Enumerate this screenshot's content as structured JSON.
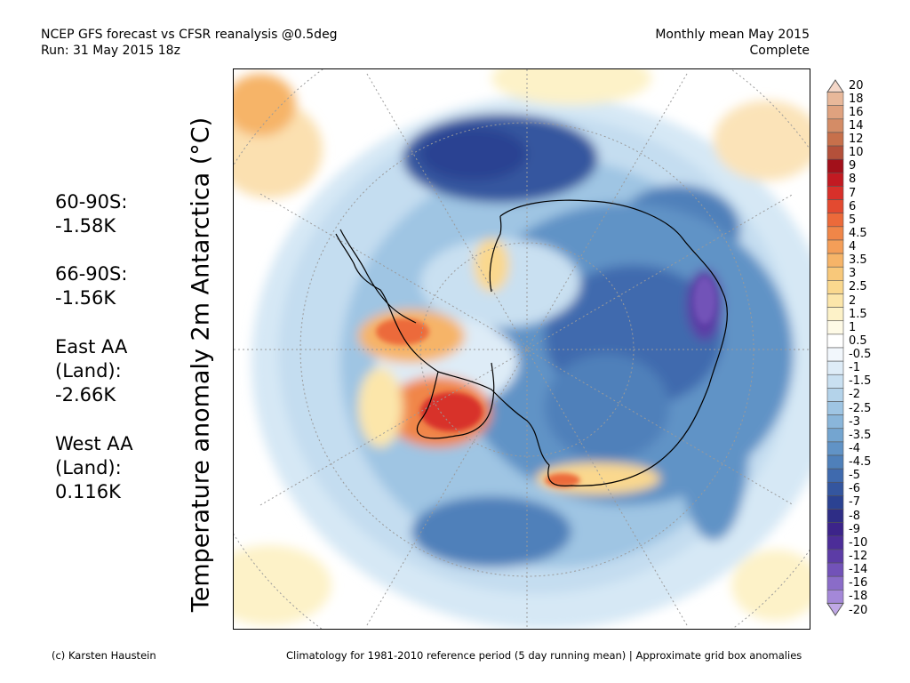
{
  "header": {
    "title_line1": "NCEP GFS forecast vs CFSR reanalysis @0.5deg",
    "title_line2": "Run: 31 May 2015 18z",
    "period": "Monthly mean May 2015",
    "status": "Complete"
  },
  "y_axis_label": "Temperature anomaly 2m Antarctica (°C)",
  "stats": [
    {
      "label_lines": [
        "60-90S:"
      ],
      "value": " -1.58K"
    },
    {
      "label_lines": [
        "66-90S:"
      ],
      "value": " -1.56K"
    },
    {
      "label_lines": [
        "East AA",
        " (Land):"
      ],
      "value": " -2.66K"
    },
    {
      "label_lines": [
        "West AA",
        " (Land):"
      ],
      "value": " 0.116K"
    }
  ],
  "legend": {
    "labels": [
      "20",
      "18",
      "16",
      "14",
      "12",
      "10",
      "9",
      "8",
      "7",
      "6",
      "5",
      "4.5",
      "4",
      "3.5",
      "3",
      "2.5",
      "2",
      "1.5",
      "1",
      "0.5",
      "-0.5",
      "-1",
      "-1.5",
      "-2",
      "-2.5",
      "-3",
      "-3.5",
      "-4",
      "-4.5",
      "-5",
      "-6",
      "-7",
      "-8",
      "-9",
      "-10",
      "-12",
      "-14",
      "-16",
      "-18",
      "-20"
    ],
    "colors": [
      "#f4d7c8",
      "#e8b89a",
      "#dfa27f",
      "#d48c66",
      "#c7704b",
      "#b4503a",
      "#a2101a",
      "#c21a22",
      "#d8302a",
      "#e34a30",
      "#ec6a3a",
      "#f08648",
      "#f49e58",
      "#f6b468",
      "#f8c87a",
      "#fad88e",
      "#fce6aa",
      "#fdf2c8",
      "#fefae6",
      "#ffffff",
      "#f2f7fc",
      "#deecf7",
      "#c9e0f1",
      "#b4d3ea",
      "#9fc5e3",
      "#8ab6da",
      "#74a5d0",
      "#6193c6",
      "#4f80ba",
      "#3f6aae",
      "#34569f",
      "#2b4292",
      "#2e2d86",
      "#3c248a",
      "#4c2d98",
      "#5c3ca6",
      "#7252b8",
      "#8a6cc8",
      "#a488d8",
      "#c0a8e6"
    ]
  },
  "footer": {
    "credit": "(c) Karsten Haustein",
    "note": "Climatology for 1981-2010 reference period (5 day running mean) | Approximate grid box anomalies"
  }
}
